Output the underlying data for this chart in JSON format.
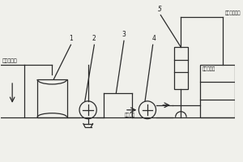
{
  "bg_color": "#f0f0eb",
  "line_color": "#2a2a2a",
  "label_color": "#1a1a1a",
  "labels": {
    "left_text": "塔的庢次钓",
    "top_right": "去水环压电机",
    "bottom_right": "主庢次钓洗",
    "low_pressure": "低压荷气",
    "num1": "1",
    "num2": "2",
    "num3": "3",
    "num4": "4",
    "num5": "5"
  }
}
